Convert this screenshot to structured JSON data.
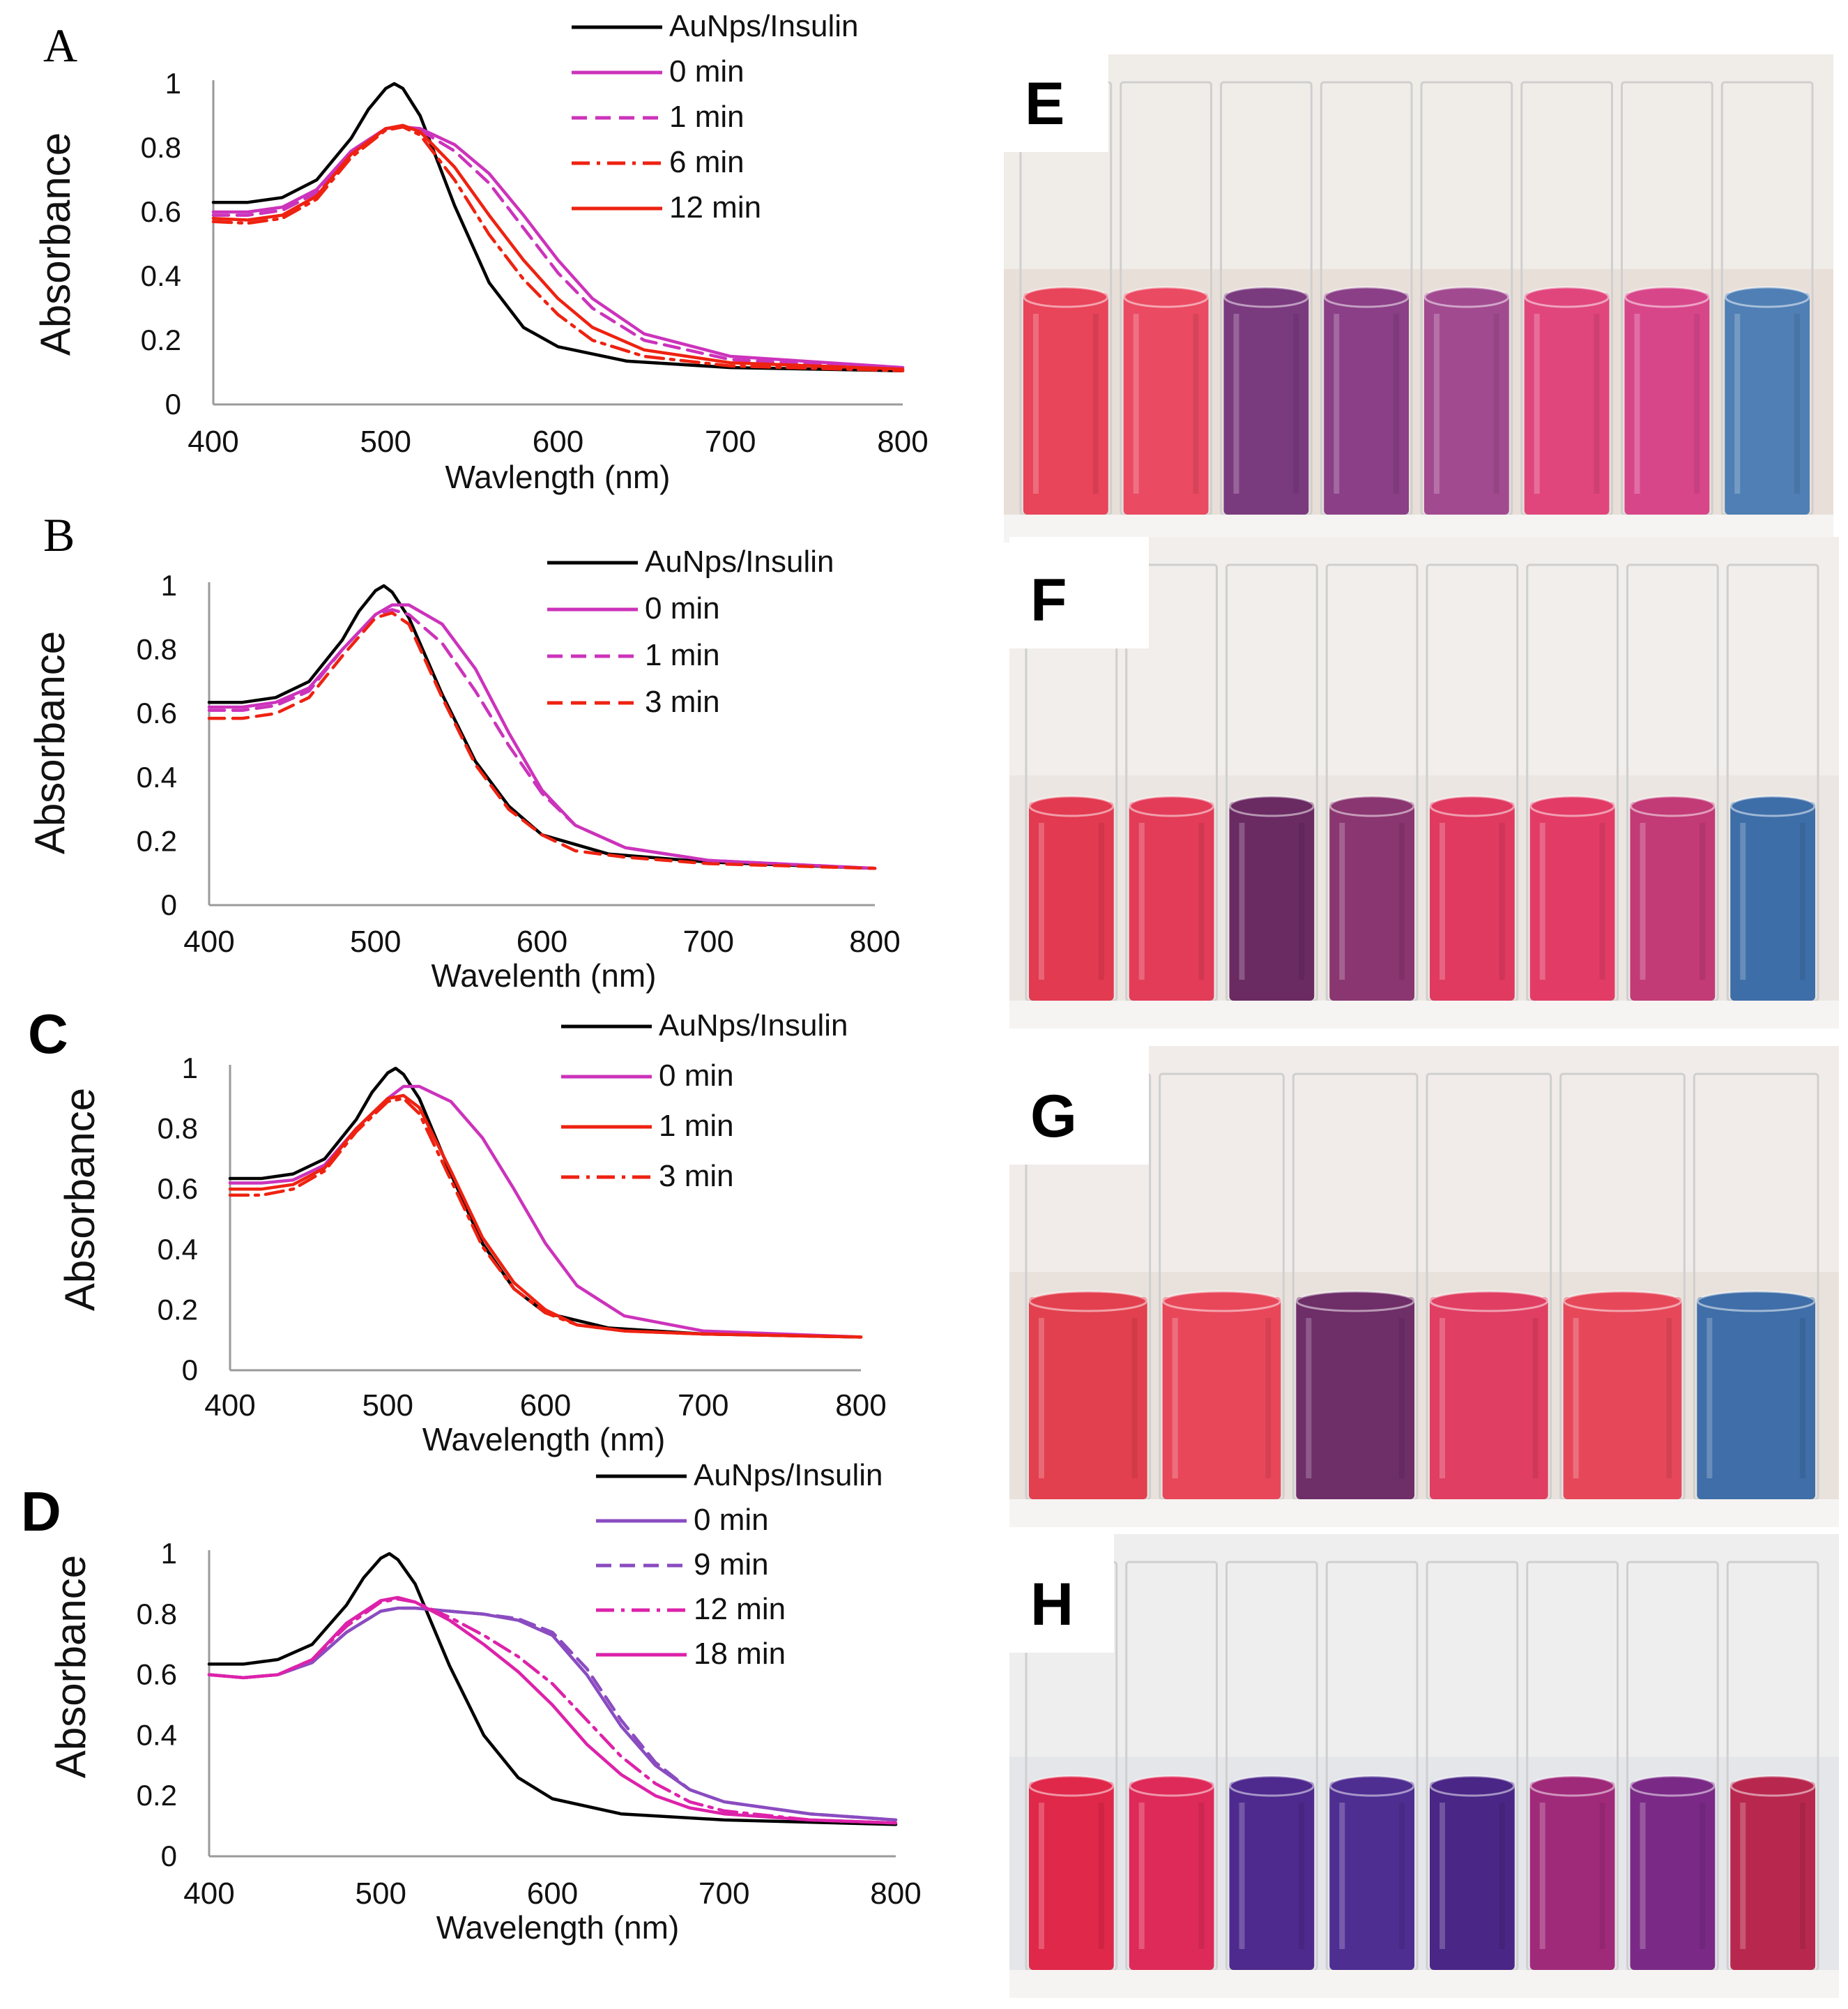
{
  "chart_data": [
    {
      "type": "line",
      "panel_label": "A",
      "xlabel": "Wavlength (nm)",
      "ylabel": "Absorbance",
      "xlim": [
        400,
        800
      ],
      "ylim": [
        0,
        1
      ],
      "x_ticks": [
        "400",
        "500",
        "600",
        "700",
        "800"
      ],
      "y_ticks": [
        "0",
        "0.2",
        "0.4",
        "0.6",
        "0.8",
        "1"
      ],
      "grid": false,
      "legend_position": "top-right",
      "series": [
        {
          "name": "AuNps/Insulin",
          "color": "#000000",
          "dash": "solid",
          "x": [
            400,
            420,
            440,
            460,
            480,
            490,
            500,
            505,
            510,
            520,
            540,
            560,
            580,
            600,
            640,
            700,
            800
          ],
          "y": [
            0.63,
            0.63,
            0.645,
            0.7,
            0.83,
            0.92,
            0.985,
            1.0,
            0.985,
            0.9,
            0.62,
            0.38,
            0.24,
            0.18,
            0.135,
            0.115,
            0.105
          ]
        },
        {
          "name": "0 min",
          "color": "#cc33bb",
          "dash": "solid",
          "x": [
            400,
            420,
            440,
            460,
            480,
            500,
            510,
            520,
            540,
            560,
            580,
            600,
            620,
            650,
            700,
            800
          ],
          "y": [
            0.6,
            0.6,
            0.615,
            0.67,
            0.79,
            0.86,
            0.865,
            0.86,
            0.81,
            0.72,
            0.59,
            0.45,
            0.33,
            0.22,
            0.15,
            0.115
          ]
        },
        {
          "name": "1 min",
          "color": "#cc33bb",
          "dash": "dashed",
          "x": [
            400,
            420,
            440,
            460,
            480,
            500,
            510,
            520,
            540,
            560,
            580,
            600,
            620,
            650,
            700,
            800
          ],
          "y": [
            0.59,
            0.59,
            0.605,
            0.66,
            0.78,
            0.86,
            0.865,
            0.855,
            0.79,
            0.69,
            0.55,
            0.41,
            0.3,
            0.2,
            0.14,
            0.11
          ]
        },
        {
          "name": "6 min",
          "color": "#ee2211",
          "dash": "dash-dot",
          "x": [
            400,
            420,
            440,
            460,
            480,
            500,
            510,
            520,
            540,
            560,
            580,
            600,
            620,
            650,
            700,
            800
          ],
          "y": [
            0.57,
            0.565,
            0.58,
            0.64,
            0.77,
            0.855,
            0.865,
            0.84,
            0.7,
            0.53,
            0.39,
            0.28,
            0.2,
            0.15,
            0.12,
            0.105
          ]
        },
        {
          "name": "12 min",
          "color": "#ee2211",
          "dash": "solid",
          "x": [
            400,
            420,
            440,
            460,
            480,
            500,
            510,
            520,
            540,
            560,
            580,
            600,
            620,
            650,
            700,
            800
          ],
          "y": [
            0.58,
            0.575,
            0.59,
            0.65,
            0.78,
            0.86,
            0.87,
            0.85,
            0.74,
            0.59,
            0.45,
            0.33,
            0.24,
            0.17,
            0.13,
            0.11
          ]
        }
      ]
    },
    {
      "type": "line",
      "panel_label": "B",
      "xlabel": "Wavelenth (nm)",
      "ylabel": "Absorbance",
      "xlim": [
        400,
        800
      ],
      "ylim": [
        0,
        1
      ],
      "x_ticks": [
        "400",
        "500",
        "600",
        "700",
        "800"
      ],
      "y_ticks": [
        "0",
        "0.2",
        "0.4",
        "0.6",
        "0.8",
        "1"
      ],
      "grid": false,
      "legend_position": "top-right",
      "series": [
        {
          "name": "AuNps/Insulin",
          "color": "#000000",
          "dash": "solid",
          "x": [
            400,
            420,
            440,
            460,
            480,
            490,
            500,
            505,
            510,
            520,
            540,
            560,
            580,
            600,
            640,
            700,
            800
          ],
          "y": [
            0.635,
            0.635,
            0.65,
            0.7,
            0.83,
            0.92,
            0.985,
            1.0,
            0.98,
            0.9,
            0.66,
            0.45,
            0.31,
            0.22,
            0.16,
            0.135,
            0.115
          ]
        },
        {
          "name": "0 min",
          "color": "#cc33bb",
          "dash": "solid",
          "x": [
            400,
            420,
            440,
            460,
            480,
            500,
            510,
            520,
            540,
            560,
            580,
            600,
            620,
            650,
            700,
            800
          ],
          "y": [
            0.62,
            0.62,
            0.635,
            0.68,
            0.8,
            0.91,
            0.94,
            0.94,
            0.88,
            0.74,
            0.54,
            0.36,
            0.25,
            0.18,
            0.14,
            0.115
          ]
        },
        {
          "name": "1 min",
          "color": "#cc33bb",
          "dash": "dashed",
          "x": [
            400,
            420,
            440,
            460,
            480,
            500,
            510,
            520,
            540,
            560,
            580,
            600,
            620,
            650,
            700,
            800
          ],
          "y": [
            0.61,
            0.61,
            0.625,
            0.67,
            0.8,
            0.91,
            0.925,
            0.91,
            0.82,
            0.67,
            0.5,
            0.35,
            0.25,
            0.18,
            0.14,
            0.115
          ]
        },
        {
          "name": "3 min",
          "color": "#ee2211",
          "dash": "dashed",
          "x": [
            400,
            420,
            440,
            460,
            480,
            500,
            510,
            520,
            540,
            560,
            580,
            600,
            620,
            650,
            700,
            800
          ],
          "y": [
            0.585,
            0.585,
            0.6,
            0.65,
            0.78,
            0.9,
            0.915,
            0.88,
            0.65,
            0.44,
            0.3,
            0.22,
            0.17,
            0.15,
            0.13,
            0.115
          ]
        }
      ]
    },
    {
      "type": "line",
      "panel_label": "C",
      "xlabel": "Wavelength (nm)",
      "ylabel": "Absorbance",
      "xlim": [
        400,
        800
      ],
      "ylim": [
        0,
        1
      ],
      "x_ticks": [
        "400",
        "500",
        "600",
        "700",
        "800"
      ],
      "y_ticks": [
        "0",
        "0.2",
        "0.4",
        "0.6",
        "0.8",
        "1"
      ],
      "grid": false,
      "legend_position": "top-right",
      "series": [
        {
          "name": "AuNps/Insulin",
          "color": "#000000",
          "dash": "solid",
          "x": [
            400,
            420,
            440,
            460,
            480,
            490,
            500,
            505,
            510,
            520,
            540,
            560,
            580,
            600,
            640,
            700,
            800
          ],
          "y": [
            0.635,
            0.635,
            0.65,
            0.7,
            0.83,
            0.92,
            0.985,
            1.0,
            0.98,
            0.9,
            0.65,
            0.42,
            0.27,
            0.19,
            0.14,
            0.12,
            0.11
          ]
        },
        {
          "name": "0 min",
          "color": "#cc33bb",
          "dash": "solid",
          "x": [
            400,
            420,
            440,
            460,
            480,
            500,
            510,
            520,
            540,
            560,
            580,
            600,
            620,
            650,
            700,
            800
          ],
          "y": [
            0.62,
            0.62,
            0.63,
            0.68,
            0.8,
            0.9,
            0.94,
            0.94,
            0.89,
            0.77,
            0.6,
            0.42,
            0.28,
            0.18,
            0.13,
            0.11
          ]
        },
        {
          "name": "1 min",
          "color": "#ee2211",
          "dash": "solid",
          "x": [
            400,
            420,
            440,
            460,
            480,
            500,
            510,
            520,
            540,
            560,
            580,
            600,
            620,
            650,
            700,
            800
          ],
          "y": [
            0.6,
            0.6,
            0.615,
            0.67,
            0.8,
            0.9,
            0.91,
            0.87,
            0.66,
            0.44,
            0.29,
            0.2,
            0.15,
            0.13,
            0.12,
            0.11
          ]
        },
        {
          "name": "3 min",
          "color": "#ee2211",
          "dash": "dash-dot",
          "x": [
            400,
            420,
            440,
            460,
            480,
            500,
            510,
            520,
            540,
            560,
            580,
            600,
            620,
            650,
            700,
            800
          ],
          "y": [
            0.58,
            0.58,
            0.6,
            0.66,
            0.79,
            0.89,
            0.9,
            0.85,
            0.63,
            0.41,
            0.27,
            0.19,
            0.15,
            0.13,
            0.12,
            0.11
          ]
        }
      ]
    },
    {
      "type": "line",
      "panel_label": "D",
      "xlabel": "Wavelength (nm)",
      "ylabel": "Absorbance",
      "xlim": [
        400,
        800
      ],
      "ylim": [
        0,
        1
      ],
      "x_ticks": [
        "400",
        "500",
        "600",
        "700",
        "800"
      ],
      "y_ticks": [
        "0",
        "0.2",
        "0.4",
        "0.6",
        "0.8",
        "1"
      ],
      "grid": false,
      "legend_position": "top-right",
      "series": [
        {
          "name": "AuNps/Insulin",
          "color": "#000000",
          "dash": "solid",
          "x": [
            400,
            420,
            440,
            460,
            480,
            490,
            500,
            505,
            510,
            520,
            540,
            560,
            580,
            600,
            640,
            700,
            800
          ],
          "y": [
            0.635,
            0.635,
            0.65,
            0.7,
            0.83,
            0.92,
            0.985,
            1.0,
            0.98,
            0.9,
            0.63,
            0.4,
            0.26,
            0.19,
            0.14,
            0.12,
            0.105
          ]
        },
        {
          "name": "0 min",
          "color": "#8a4cc0",
          "dash": "solid",
          "x": [
            400,
            420,
            440,
            460,
            480,
            500,
            510,
            520,
            540,
            560,
            580,
            600,
            620,
            640,
            660,
            680,
            700,
            750,
            800
          ],
          "y": [
            0.6,
            0.59,
            0.6,
            0.64,
            0.74,
            0.81,
            0.82,
            0.82,
            0.81,
            0.8,
            0.78,
            0.73,
            0.6,
            0.43,
            0.3,
            0.22,
            0.18,
            0.14,
            0.12
          ]
        },
        {
          "name": "9 min",
          "color": "#8a4cc0",
          "dash": "dashed",
          "x": [
            400,
            420,
            440,
            460,
            480,
            500,
            510,
            520,
            540,
            560,
            580,
            600,
            620,
            640,
            660,
            680,
            700,
            750,
            800
          ],
          "y": [
            0.6,
            0.59,
            0.6,
            0.64,
            0.74,
            0.81,
            0.82,
            0.82,
            0.81,
            0.8,
            0.785,
            0.74,
            0.62,
            0.45,
            0.31,
            0.22,
            0.18,
            0.14,
            0.12
          ]
        },
        {
          "name": "12 min",
          "color": "#dd22aa",
          "dash": "dash-dot",
          "x": [
            400,
            420,
            440,
            460,
            480,
            500,
            510,
            520,
            540,
            560,
            580,
            600,
            620,
            640,
            660,
            680,
            700,
            750,
            800
          ],
          "y": [
            0.6,
            0.59,
            0.6,
            0.65,
            0.76,
            0.84,
            0.85,
            0.84,
            0.79,
            0.73,
            0.66,
            0.57,
            0.45,
            0.33,
            0.24,
            0.18,
            0.15,
            0.12,
            0.11
          ]
        },
        {
          "name": "18 min",
          "color": "#dd22aa",
          "dash": "solid",
          "x": [
            400,
            420,
            440,
            460,
            480,
            500,
            510,
            520,
            540,
            560,
            580,
            600,
            620,
            640,
            660,
            680,
            700,
            750,
            800
          ],
          "y": [
            0.6,
            0.59,
            0.6,
            0.65,
            0.77,
            0.845,
            0.855,
            0.84,
            0.78,
            0.7,
            0.61,
            0.5,
            0.37,
            0.27,
            0.2,
            0.16,
            0.14,
            0.12,
            0.11
          ]
        }
      ]
    }
  ],
  "photos": [
    {
      "label": "E",
      "cuvettes": [
        "#e8445a",
        "#ea4a62",
        "#7a3a7e",
        "#8a3f86",
        "#a24a90",
        "#e0467c",
        "#d8468a",
        "#4f7fb4"
      ]
    },
    {
      "label": "F",
      "cuvettes": [
        "#e23a50",
        "#e33c58",
        "#6a2a62",
        "#8a3670",
        "#e03a60",
        "#e23c66",
        "#c23a76",
        "#3e6ea8"
      ]
    },
    {
      "label": "G",
      "cuvettes": [
        "#e2404e",
        "#e8475a",
        "#6e2e68",
        "#e03e62",
        "#e6485a",
        "#3f6ea8"
      ]
    },
    {
      "label": "H",
      "cuvettes": [
        "#e0284a",
        "#de2a58",
        "#4e2a8e",
        "#4f2e92",
        "#4a2686",
        "#a02a7a",
        "#7a2a86",
        "#b8284e"
      ]
    }
  ]
}
